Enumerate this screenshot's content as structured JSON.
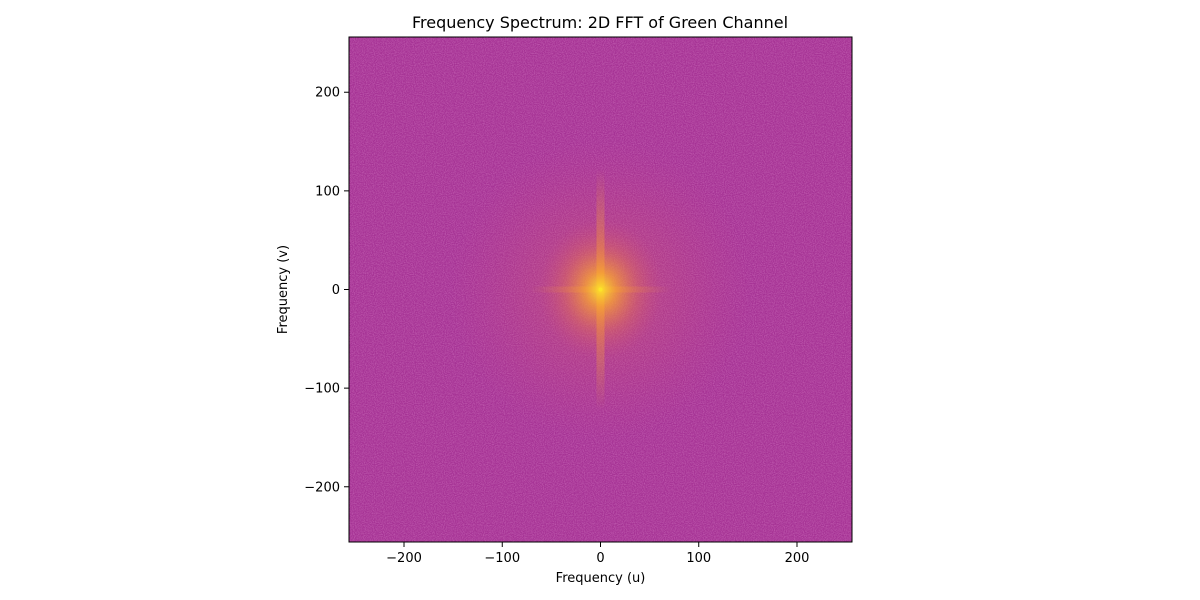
{
  "chart_data": {
    "type": "heatmap",
    "title": "Frequency Spectrum: 2D FFT of Green Channel",
    "xlabel": "Frequency (u)",
    "ylabel": "Frequency (v)",
    "xlim": [
      -256,
      256
    ],
    "ylim": [
      -256,
      256
    ],
    "x_ticks": [
      -200,
      -100,
      0,
      100,
      200
    ],
    "y_ticks": [
      -200,
      -100,
      0,
      100,
      200
    ],
    "x_tick_labels": [
      "−200",
      "−100",
      "0",
      "100",
      "200"
    ],
    "y_tick_labels": [
      "−200",
      "−100",
      "0",
      "100",
      "200"
    ],
    "colormap": "plasma",
    "grid": false,
    "legend": "none",
    "peak": {
      "u": 0,
      "v": 0
    },
    "colors": {
      "background": "#a63395",
      "mid": "#cc4a79",
      "glow": "#e6734f",
      "bright": "#f9a431",
      "peak": "#fce42a"
    }
  }
}
